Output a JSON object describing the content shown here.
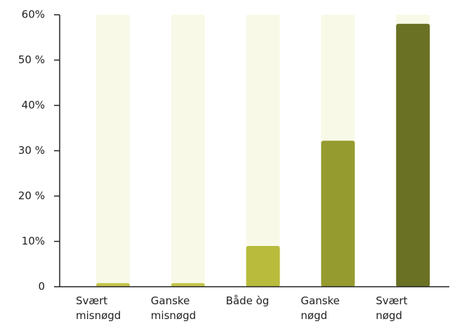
{
  "chart_data": {
    "type": "bar",
    "categories": [
      "Svært\nmisnøgd",
      "Ganske\nmisnøgd",
      "Både òg",
      "Ganske\nnøgd",
      "Svært\nnøgd"
    ],
    "values": [
      0.8,
      0.8,
      9,
      32.2,
      58
    ],
    "colors": [
      "#c3c649",
      "#c3c649",
      "#b8bb3b",
      "#959b2f",
      "#6b7124"
    ],
    "background_color": "#f8f9e7",
    "ylim": [
      0,
      60
    ],
    "yticks": [
      0,
      {
        "value": 10,
        "label": "10%"
      },
      {
        "value": 20,
        "label": "20 %"
      },
      {
        "value": 30,
        "label": "30 %"
      },
      {
        "value": 40,
        "label": "40%"
      },
      {
        "value": 50,
        "label": "50 %"
      },
      {
        "value": 60,
        "label": "60%"
      }
    ],
    "grid": false
  }
}
